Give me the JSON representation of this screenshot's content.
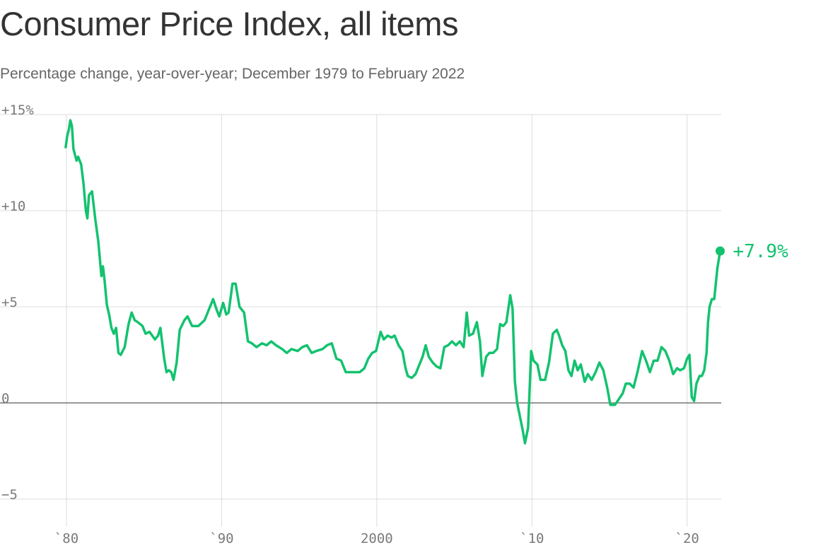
{
  "header": {
    "title": "Consumer Price Index, all items",
    "subtitle": "Percentage change, year-over-year; December 1979 to February 2022"
  },
  "colors": {
    "line": "#13c26f",
    "grid": "#dddddd",
    "zero": "#333333",
    "tick_text": "#7a7a7a"
  },
  "chart_data": {
    "type": "line",
    "title": "Consumer Price Index, all items",
    "subtitle": "Percentage change, year-over-year; December 1979 to February 2022",
    "xlabel": "",
    "ylabel": "",
    "xlim": [
      1980,
      2022.2
    ],
    "ylim": [
      -6.2,
      15
    ],
    "grid": "horizontal and vertical",
    "y_ticks": [
      {
        "value": 15,
        "label": "+15%"
      },
      {
        "value": 10,
        "label": "+10"
      },
      {
        "value": 5,
        "label": "+5"
      },
      {
        "value": 0,
        "label": "0"
      },
      {
        "value": -5,
        "label": "−5"
      }
    ],
    "x_ticks": [
      {
        "value": 1980,
        "label": "`80"
      },
      {
        "value": 1990,
        "label": "`90"
      },
      {
        "value": 2000,
        "label": "2000"
      },
      {
        "value": 2010,
        "label": "`10"
      },
      {
        "value": 2020,
        "label": "`20"
      }
    ],
    "end_label": "+7.9%",
    "series": [
      {
        "values_note_unused": "",
        "points": [
          [
            1979.95,
            13.3
          ],
          [
            1980.05,
            13.9
          ],
          [
            1980.15,
            14.2
          ],
          [
            1980.25,
            14.7
          ],
          [
            1980.35,
            14.4
          ],
          [
            1980.45,
            13.2
          ],
          [
            1980.55,
            12.9
          ],
          [
            1980.65,
            12.6
          ],
          [
            1980.75,
            12.8
          ],
          [
            1980.95,
            12.4
          ],
          [
            1981.1,
            11.4
          ],
          [
            1981.25,
            10.0
          ],
          [
            1981.35,
            9.6
          ],
          [
            1981.45,
            10.8
          ],
          [
            1981.65,
            11.0
          ],
          [
            1981.85,
            9.6
          ],
          [
            1982.05,
            8.4
          ],
          [
            1982.25,
            6.6
          ],
          [
            1982.35,
            7.1
          ],
          [
            1982.45,
            6.4
          ],
          [
            1982.6,
            5.1
          ],
          [
            1982.75,
            4.6
          ],
          [
            1982.9,
            3.9
          ],
          [
            1983.05,
            3.6
          ],
          [
            1983.2,
            3.9
          ],
          [
            1983.35,
            2.6
          ],
          [
            1983.5,
            2.5
          ],
          [
            1983.75,
            2.9
          ],
          [
            1984.0,
            4.1
          ],
          [
            1984.2,
            4.7
          ],
          [
            1984.4,
            4.3
          ],
          [
            1984.6,
            4.2
          ],
          [
            1984.9,
            4.0
          ],
          [
            1985.1,
            3.6
          ],
          [
            1985.35,
            3.7
          ],
          [
            1985.7,
            3.3
          ],
          [
            1985.9,
            3.5
          ],
          [
            1986.05,
            3.9
          ],
          [
            1986.3,
            2.3
          ],
          [
            1986.45,
            1.6
          ],
          [
            1986.6,
            1.7
          ],
          [
            1986.75,
            1.6
          ],
          [
            1986.9,
            1.2
          ],
          [
            1987.1,
            2.1
          ],
          [
            1987.3,
            3.8
          ],
          [
            1987.6,
            4.3
          ],
          [
            1987.8,
            4.5
          ],
          [
            1988.1,
            4.0
          ],
          [
            1988.5,
            4.0
          ],
          [
            1988.9,
            4.3
          ],
          [
            1989.2,
            4.9
          ],
          [
            1989.45,
            5.4
          ],
          [
            1989.7,
            4.8
          ],
          [
            1989.85,
            4.5
          ],
          [
            1990.1,
            5.2
          ],
          [
            1990.3,
            4.6
          ],
          [
            1990.45,
            4.7
          ],
          [
            1990.7,
            6.2
          ],
          [
            1990.9,
            6.2
          ],
          [
            1991.15,
            5.0
          ],
          [
            1991.45,
            4.7
          ],
          [
            1991.7,
            3.2
          ],
          [
            1991.95,
            3.1
          ],
          [
            1992.25,
            2.9
          ],
          [
            1992.6,
            3.1
          ],
          [
            1992.9,
            3.0
          ],
          [
            1993.2,
            3.2
          ],
          [
            1993.5,
            3.0
          ],
          [
            1993.9,
            2.8
          ],
          [
            1994.2,
            2.6
          ],
          [
            1994.5,
            2.8
          ],
          [
            1994.9,
            2.7
          ],
          [
            1995.2,
            2.9
          ],
          [
            1995.5,
            3.0
          ],
          [
            1995.8,
            2.6
          ],
          [
            1996.1,
            2.7
          ],
          [
            1996.5,
            2.8
          ],
          [
            1996.8,
            3.0
          ],
          [
            1997.1,
            3.1
          ],
          [
            1997.4,
            2.3
          ],
          [
            1997.7,
            2.2
          ],
          [
            1998.0,
            1.6
          ],
          [
            1998.3,
            1.6
          ],
          [
            1998.6,
            1.6
          ],
          [
            1998.9,
            1.6
          ],
          [
            1999.2,
            1.8
          ],
          [
            1999.45,
            2.3
          ],
          [
            1999.7,
            2.6
          ],
          [
            1999.95,
            2.7
          ],
          [
            2000.1,
            3.2
          ],
          [
            2000.25,
            3.7
          ],
          [
            2000.45,
            3.3
          ],
          [
            2000.7,
            3.5
          ],
          [
            2000.95,
            3.4
          ],
          [
            2001.15,
            3.5
          ],
          [
            2001.4,
            3.0
          ],
          [
            2001.65,
            2.7
          ],
          [
            2001.85,
            1.8
          ],
          [
            2002.0,
            1.4
          ],
          [
            2002.25,
            1.3
          ],
          [
            2002.5,
            1.5
          ],
          [
            2002.75,
            2.0
          ],
          [
            2002.95,
            2.4
          ],
          [
            2003.15,
            3.0
          ],
          [
            2003.35,
            2.4
          ],
          [
            2003.6,
            2.1
          ],
          [
            2003.85,
            1.9
          ],
          [
            2004.1,
            1.8
          ],
          [
            2004.35,
            2.9
          ],
          [
            2004.6,
            3.0
          ],
          [
            2004.85,
            3.2
          ],
          [
            2005.1,
            3.0
          ],
          [
            2005.35,
            3.2
          ],
          [
            2005.6,
            2.9
          ],
          [
            2005.8,
            4.7
          ],
          [
            2005.95,
            3.5
          ],
          [
            2006.2,
            3.6
          ],
          [
            2006.45,
            4.2
          ],
          [
            2006.65,
            3.2
          ],
          [
            2006.8,
            1.4
          ],
          [
            2007.05,
            2.4
          ],
          [
            2007.25,
            2.6
          ],
          [
            2007.5,
            2.6
          ],
          [
            2007.75,
            2.8
          ],
          [
            2007.95,
            4.1
          ],
          [
            2008.15,
            4.0
          ],
          [
            2008.35,
            4.2
          ],
          [
            2008.6,
            5.6
          ],
          [
            2008.75,
            4.9
          ],
          [
            2008.9,
            1.1
          ],
          [
            2009.05,
            0.0
          ],
          [
            2009.2,
            -0.6
          ],
          [
            2009.4,
            -1.4
          ],
          [
            2009.55,
            -2.1
          ],
          [
            2009.75,
            -1.3
          ],
          [
            2009.95,
            2.7
          ],
          [
            2010.1,
            2.2
          ],
          [
            2010.35,
            2.0
          ],
          [
            2010.55,
            1.2
          ],
          [
            2010.85,
            1.2
          ],
          [
            2011.1,
            2.1
          ],
          [
            2011.35,
            3.6
          ],
          [
            2011.6,
            3.8
          ],
          [
            2011.75,
            3.5
          ],
          [
            2011.95,
            3.0
          ],
          [
            2012.15,
            2.7
          ],
          [
            2012.35,
            1.7
          ],
          [
            2012.55,
            1.4
          ],
          [
            2012.75,
            2.2
          ],
          [
            2012.95,
            1.7
          ],
          [
            2013.15,
            2.0
          ],
          [
            2013.4,
            1.1
          ],
          [
            2013.6,
            1.5
          ],
          [
            2013.85,
            1.2
          ],
          [
            2014.1,
            1.6
          ],
          [
            2014.35,
            2.1
          ],
          [
            2014.6,
            1.7
          ],
          [
            2014.85,
            0.8
          ],
          [
            2015.05,
            -0.1
          ],
          [
            2015.35,
            -0.1
          ],
          [
            2015.6,
            0.2
          ],
          [
            2015.85,
            0.5
          ],
          [
            2016.05,
            1.0
          ],
          [
            2016.3,
            1.0
          ],
          [
            2016.55,
            0.8
          ],
          [
            2016.8,
            1.6
          ],
          [
            2017.1,
            2.7
          ],
          [
            2017.35,
            2.2
          ],
          [
            2017.6,
            1.6
          ],
          [
            2017.85,
            2.2
          ],
          [
            2018.1,
            2.2
          ],
          [
            2018.35,
            2.9
          ],
          [
            2018.6,
            2.7
          ],
          [
            2018.85,
            2.2
          ],
          [
            2019.1,
            1.5
          ],
          [
            2019.35,
            1.8
          ],
          [
            2019.55,
            1.7
          ],
          [
            2019.8,
            1.8
          ],
          [
            2020.0,
            2.3
          ],
          [
            2020.15,
            2.5
          ],
          [
            2020.3,
            0.3
          ],
          [
            2020.45,
            0.1
          ],
          [
            2020.6,
            1.0
          ],
          [
            2020.8,
            1.4
          ],
          [
            2020.95,
            1.4
          ],
          [
            2021.1,
            1.7
          ],
          [
            2021.25,
            2.6
          ],
          [
            2021.35,
            4.2
          ],
          [
            2021.45,
            5.0
          ],
          [
            2021.6,
            5.4
          ],
          [
            2021.75,
            5.4
          ],
          [
            2021.85,
            6.2
          ],
          [
            2021.95,
            7.0
          ],
          [
            2022.05,
            7.5
          ],
          [
            2022.13,
            7.9
          ]
        ]
      }
    ]
  }
}
